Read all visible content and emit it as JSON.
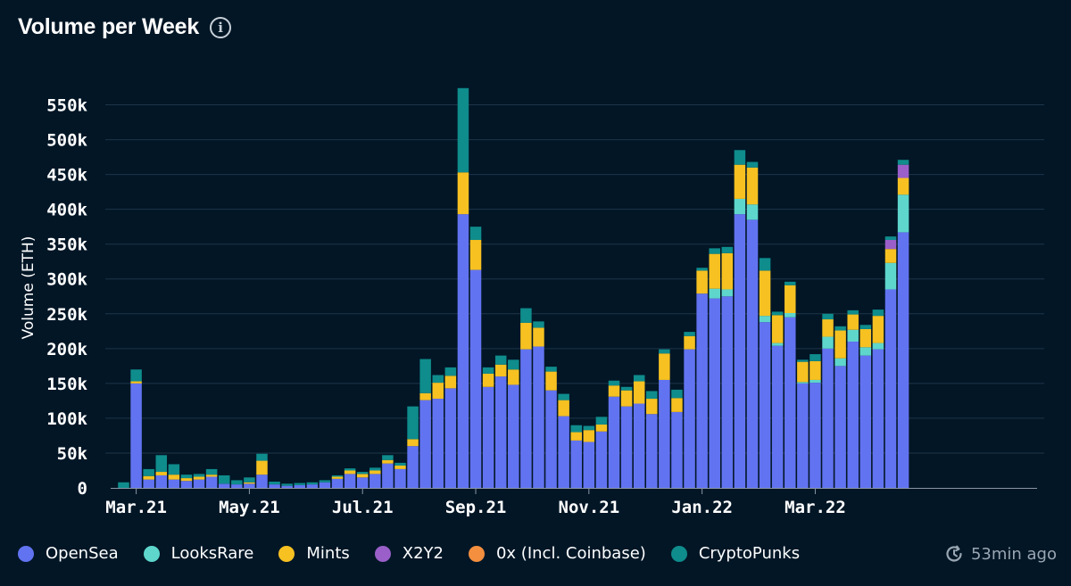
{
  "header": {
    "title": "Volume per Week",
    "info_icon": "info-icon"
  },
  "status": {
    "updated_text": "53min ago",
    "icon": "refresh-clock-icon"
  },
  "chart_data": {
    "type": "bar",
    "stacked": true,
    "ylabel": "Volume (ETH)",
    "ylim": [
      0,
      575000
    ],
    "yticks": [
      0,
      50000,
      100000,
      150000,
      200000,
      250000,
      300000,
      350000,
      400000,
      450000,
      500000,
      550000
    ],
    "ytick_labels": [
      "0",
      "50k",
      "100k",
      "150k",
      "200k",
      "250k",
      "300k",
      "350k",
      "400k",
      "450k",
      "500k",
      "550k"
    ],
    "grid": true,
    "legend_position": "bottom",
    "xtick_labels": [
      {
        "label": "Mar.21",
        "index": 1
      },
      {
        "label": "May.21",
        "index": 10
      },
      {
        "label": "Jul.21",
        "index": 19
      },
      {
        "label": "Sep.21",
        "index": 28
      },
      {
        "label": "Nov.21",
        "index": 37
      },
      {
        "label": "Jan.22",
        "index": 46
      },
      {
        "label": "Mar.22",
        "index": 55
      }
    ],
    "series": [
      {
        "name": "OpenSea",
        "color": "#6273f1",
        "values": [
          0,
          150000,
          12000,
          18000,
          12000,
          10000,
          12000,
          16000,
          6000,
          5000,
          6000,
          19000,
          5000,
          3000,
          4000,
          5000,
          8000,
          13000,
          20000,
          15000,
          20000,
          35000,
          27000,
          60000,
          126000,
          128000,
          143000,
          393000,
          313000,
          145000,
          160000,
          148000,
          199000,
          203000,
          140000,
          103000,
          68000,
          66000,
          81000,
          131000,
          117000,
          121000,
          106000,
          155000,
          109000,
          199000,
          279000,
          272000,
          275000,
          393000,
          385000,
          238000,
          204000,
          245000,
          150000,
          151000,
          200000,
          175000,
          210000,
          190000,
          199000,
          285000,
          367000
        ]
      },
      {
        "name": "LooksRare",
        "color": "#5ed6cc",
        "values": [
          0,
          0,
          0,
          0,
          0,
          0,
          0,
          0,
          0,
          0,
          0,
          0,
          0,
          0,
          0,
          0,
          0,
          0,
          0,
          0,
          0,
          0,
          0,
          0,
          0,
          0,
          0,
          0,
          0,
          0,
          0,
          0,
          0,
          0,
          0,
          0,
          0,
          0,
          0,
          0,
          0,
          0,
          0,
          0,
          0,
          0,
          0,
          14000,
          10000,
          22000,
          22000,
          9000,
          4000,
          6000,
          2000,
          4000,
          17000,
          11000,
          17000,
          12000,
          9000,
          38000,
          54000
        ]
      },
      {
        "name": "Mints",
        "color": "#f6c121",
        "values": [
          0,
          3000,
          5000,
          5000,
          7000,
          4000,
          4000,
          3000,
          0,
          0,
          2000,
          20000,
          0,
          0,
          0,
          0,
          0,
          3000,
          5000,
          5000,
          5000,
          5000,
          5000,
          10000,
          10000,
          23000,
          18000,
          60000,
          43000,
          19000,
          17000,
          22000,
          38000,
          27000,
          27000,
          23000,
          12000,
          17000,
          10000,
          16000,
          23000,
          32000,
          22000,
          38000,
          20000,
          19000,
          33000,
          50000,
          52000,
          49000,
          53000,
          65000,
          40000,
          40000,
          29000,
          27000,
          25000,
          40000,
          22000,
          26000,
          39000,
          20000,
          24000
        ]
      },
      {
        "name": "X2Y2",
        "color": "#9a5fc8",
        "values": [
          0,
          0,
          0,
          0,
          0,
          0,
          0,
          0,
          0,
          0,
          0,
          0,
          0,
          0,
          0,
          0,
          0,
          0,
          0,
          0,
          0,
          0,
          0,
          0,
          0,
          0,
          0,
          0,
          0,
          0,
          0,
          0,
          0,
          0,
          0,
          0,
          0,
          0,
          0,
          0,
          0,
          0,
          0,
          0,
          0,
          0,
          0,
          0,
          0,
          0,
          0,
          0,
          0,
          0,
          0,
          0,
          0,
          0,
          0,
          0,
          0,
          13000,
          19000
        ]
      },
      {
        "name": "0x (Incl. Coinbase)",
        "color": "#f38f3e",
        "values": [
          0,
          0,
          0,
          0,
          0,
          0,
          0,
          0,
          0,
          0,
          0,
          0,
          0,
          0,
          0,
          0,
          0,
          0,
          0,
          0,
          0,
          0,
          0,
          0,
          0,
          0,
          0,
          0,
          0,
          0,
          0,
          0,
          0,
          0,
          0,
          0,
          0,
          0,
          0,
          0,
          0,
          0,
          0,
          0,
          0,
          0,
          0,
          0,
          0,
          0,
          0,
          0,
          0,
          0,
          0,
          0,
          0,
          0,
          0,
          0,
          0,
          0,
          0
        ]
      },
      {
        "name": "CryptoPunks",
        "color": "#0f8c8c",
        "values": [
          8000,
          17000,
          10000,
          24000,
          15000,
          5000,
          4000,
          8000,
          12000,
          6000,
          7000,
          10000,
          4000,
          3000,
          3000,
          3000,
          3000,
          2000,
          3000,
          3000,
          4000,
          7000,
          4000,
          47000,
          49000,
          11000,
          12000,
          121000,
          19000,
          9000,
          13000,
          14000,
          21000,
          9000,
          7000,
          9000,
          10000,
          6000,
          11000,
          7000,
          5000,
          9000,
          11000,
          6000,
          12000,
          6000,
          4000,
          8000,
          9000,
          21000,
          8000,
          18000,
          5000,
          5000,
          3000,
          10000,
          8000,
          6000,
          6000,
          6000,
          9000,
          5000,
          7000
        ]
      }
    ]
  }
}
